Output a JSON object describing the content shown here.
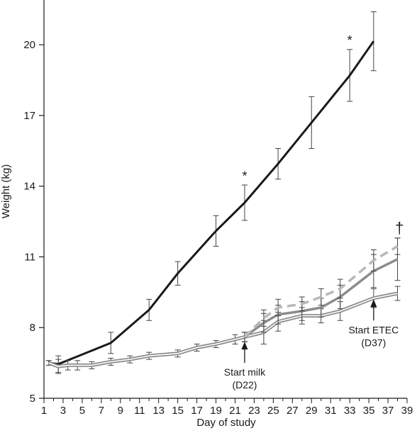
{
  "chart_data": {
    "type": "line",
    "title": "",
    "xlabel": "Day of study",
    "ylabel": "Weight (kg)",
    "xlim": [
      1,
      39
    ],
    "ylim": [
      5,
      21.9
    ],
    "x_ticks": [
      1,
      3,
      5,
      7,
      9,
      11,
      13,
      15,
      17,
      19,
      21,
      23,
      25,
      27,
      29,
      31,
      33,
      35,
      37,
      39
    ],
    "y_ticks": [
      5,
      8,
      11,
      14,
      17,
      20
    ],
    "grid": false,
    "legend": "none",
    "series": [
      {
        "style": "solid-black",
        "color": "#1a1a1a",
        "x": [
          1.5,
          2.5,
          8,
          12,
          15,
          19,
          22,
          25.5,
          29,
          33,
          35.5
        ],
        "y": [
          6.5,
          6.45,
          7.35,
          8.75,
          10.3,
          12.1,
          13.3,
          14.95,
          16.7,
          18.7,
          20.15
        ],
        "err": [
          0.1,
          0.35,
          0.45,
          0.45,
          0.5,
          0.65,
          0.75,
          0.65,
          1.1,
          1.1,
          1.25
        ]
      },
      {
        "style": "double-gray",
        "color": "#8a8a8a",
        "x": [
          1.5,
          2.5,
          3.5,
          4.5,
          6,
          8,
          10,
          12,
          15,
          17,
          19,
          21,
          22,
          24,
          25.5,
          28,
          30,
          32,
          35.5,
          38
        ],
        "y": [
          6.5,
          6.35,
          6.4,
          6.4,
          6.4,
          6.55,
          6.65,
          6.8,
          6.9,
          7.15,
          7.3,
          7.5,
          7.6,
          7.8,
          8.25,
          8.5,
          8.5,
          8.7,
          9.25,
          9.45
        ],
        "err": [
          0.1,
          0.3,
          0.2,
          0.2,
          0.15,
          0.15,
          0.15,
          0.15,
          0.15,
          0.15,
          0.15,
          0.2,
          0.2,
          0.5,
          0.4,
          0.35,
          0.3,
          0.4,
          0.4,
          0.3
        ]
      },
      {
        "style": "solid-gray",
        "color": "#8c8c8c",
        "x": [
          22,
          24,
          25.5,
          28,
          30,
          32,
          35.5,
          38
        ],
        "y": [
          7.6,
          8.2,
          8.55,
          8.7,
          8.85,
          9.3,
          10.4,
          10.9
        ],
        "err": [
          0.2,
          0.4,
          0.4,
          0.4,
          0.4,
          0.5,
          0.7,
          0.9
        ]
      },
      {
        "style": "dashed-gray",
        "color": "#b8b8b8",
        "x": [
          22,
          24,
          25.5,
          28,
          30,
          32,
          35.5,
          38
        ],
        "y": [
          7.6,
          8.4,
          8.85,
          9.0,
          9.3,
          9.65,
          10.85,
          11.45
        ],
        "err": [
          0.2,
          0.35,
          0.35,
          0.3,
          0.35,
          0.4,
          0.45,
          0.35
        ]
      }
    ],
    "annotations": [
      {
        "text": "*",
        "x": 22,
        "y": 14.25,
        "kind": "sig"
      },
      {
        "text": "*",
        "x": 33,
        "y": 20.0,
        "kind": "sig"
      },
      {
        "text": "†",
        "x": 38.2,
        "y": 12.0,
        "kind": "dagger"
      },
      {
        "text": "Start milk",
        "x": 22,
        "y": 7.1,
        "kind": "arrow-label",
        "line2": "(D22)"
      },
      {
        "text": "Start ETEC",
        "x": 35.5,
        "y": 8.9,
        "kind": "arrow-label",
        "line2": "(D37)"
      }
    ]
  }
}
